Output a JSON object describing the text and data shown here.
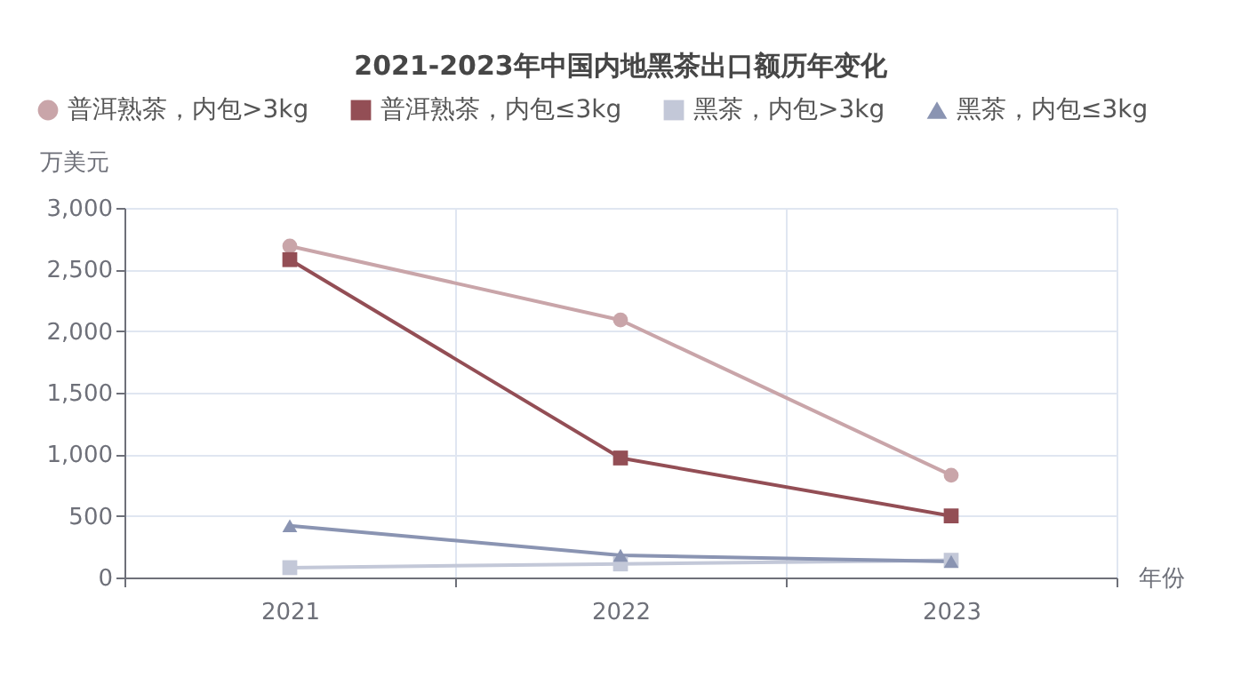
{
  "chart_data": {
    "type": "line",
    "title": "2021-2023年中国内地黑茶出口额历年变化",
    "xlabel": "年份",
    "ylabel": "万美元",
    "categories": [
      "2021",
      "2022",
      "2023"
    ],
    "series": [
      {
        "name": "普洱熟茶，内包>3kg",
        "color": "#c9a5a9",
        "marker": "circle",
        "values": [
          2690,
          2090,
          830
        ]
      },
      {
        "name": "普洱熟茶，内包≤3kg",
        "color": "#934e55",
        "marker": "square",
        "values": [
          2580,
          970,
          500
        ]
      },
      {
        "name": "黑茶，内包>3kg",
        "color": "#c3c8d8",
        "marker": "square",
        "values": [
          80,
          110,
          140
        ]
      },
      {
        "name": "黑茶，内包≤3kg",
        "color": "#8a94b2",
        "marker": "triangle",
        "values": [
          420,
          180,
          130
        ]
      }
    ],
    "ylim": [
      0,
      3000
    ],
    "yticks": [
      0,
      500,
      {
        "value": 1000,
        "label": "1,000"
      },
      {
        "value": 1500,
        "label": "1,500"
      },
      {
        "value": 2000,
        "label": "2,000"
      },
      {
        "value": 2500,
        "label": "2,500"
      },
      {
        "value": 3000,
        "label": "3,000"
      }
    ],
    "grid": true,
    "legend": "top"
  }
}
